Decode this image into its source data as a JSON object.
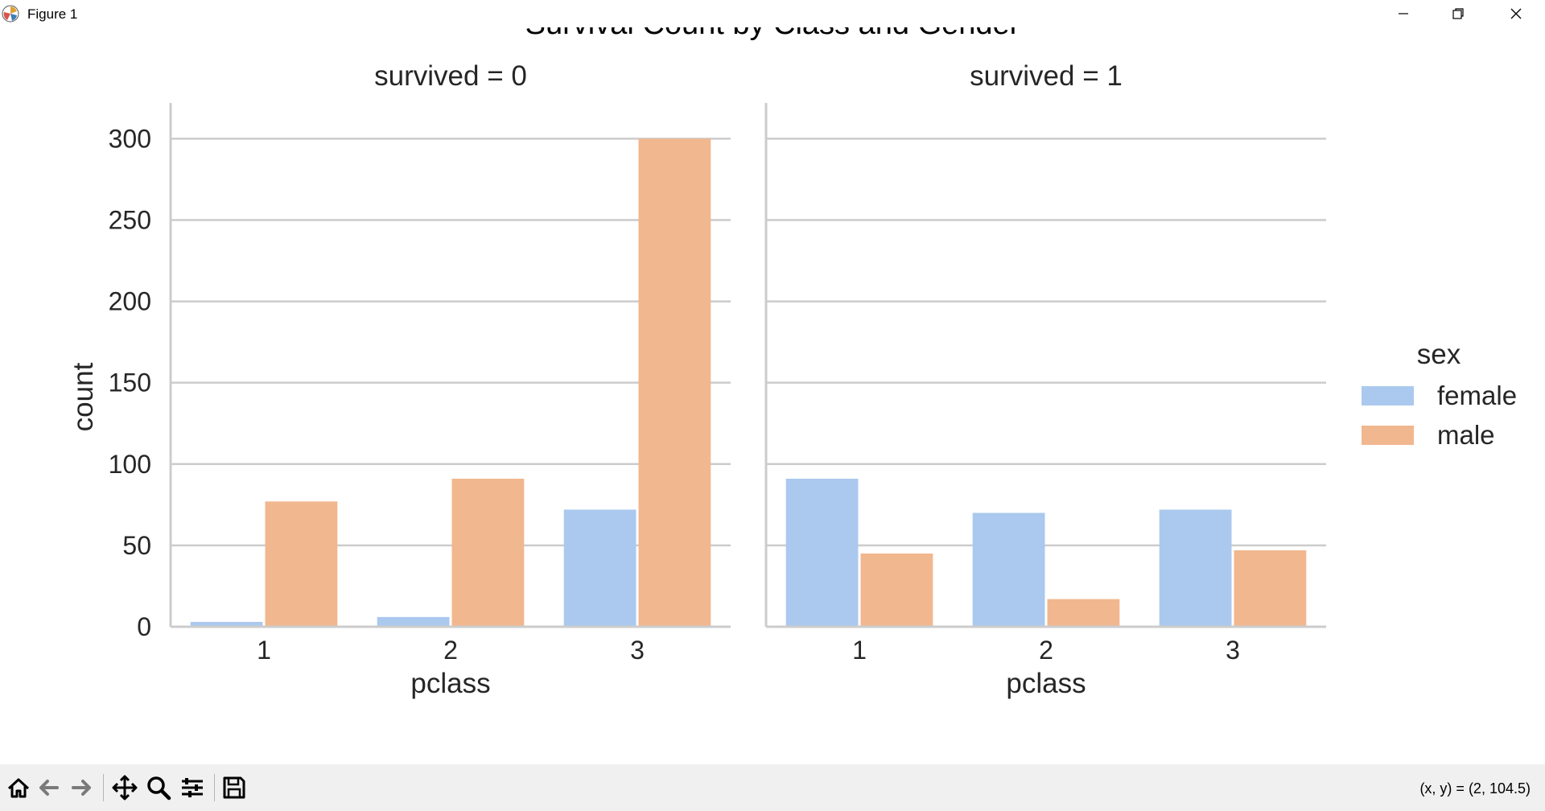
{
  "window": {
    "title": "Figure 1",
    "icons": [
      "matplotlib-icon",
      "minimize-icon",
      "maximize-icon",
      "close-icon"
    ]
  },
  "toolbar": {
    "buttons": [
      "home-icon",
      "back-icon",
      "forward-icon",
      "pan-icon",
      "zoom-icon",
      "configure-subplots-icon",
      "save-icon"
    ],
    "coordinates": "(x, y) = (2, 104.5)"
  },
  "colors": {
    "female": "#abc9ee",
    "male": "#f1b78f",
    "grid": "#cccccc",
    "text": "#262626"
  },
  "chart_data": {
    "type": "bar",
    "title": "Survival Count by Class and Gender",
    "ylabel": "count",
    "ylim": [
      0,
      316
    ],
    "yticks": [
      0,
      50,
      100,
      150,
      200,
      250,
      300
    ],
    "grid": true,
    "legend": {
      "title": "sex",
      "position": "right",
      "entries": [
        "female",
        "male"
      ]
    },
    "facets": [
      {
        "title": "survived = 0",
        "xlabel": "pclass",
        "categories": [
          "1",
          "2",
          "3"
        ],
        "series": [
          {
            "name": "female",
            "values": [
              3,
              6,
              72
            ]
          },
          {
            "name": "male",
            "values": [
              77,
              91,
              300
            ]
          }
        ]
      },
      {
        "title": "survived = 1",
        "xlabel": "pclass",
        "categories": [
          "1",
          "2",
          "3"
        ],
        "series": [
          {
            "name": "female",
            "values": [
              91,
              70,
              72
            ]
          },
          {
            "name": "male",
            "values": [
              45,
              17,
              47
            ]
          }
        ]
      }
    ]
  }
}
